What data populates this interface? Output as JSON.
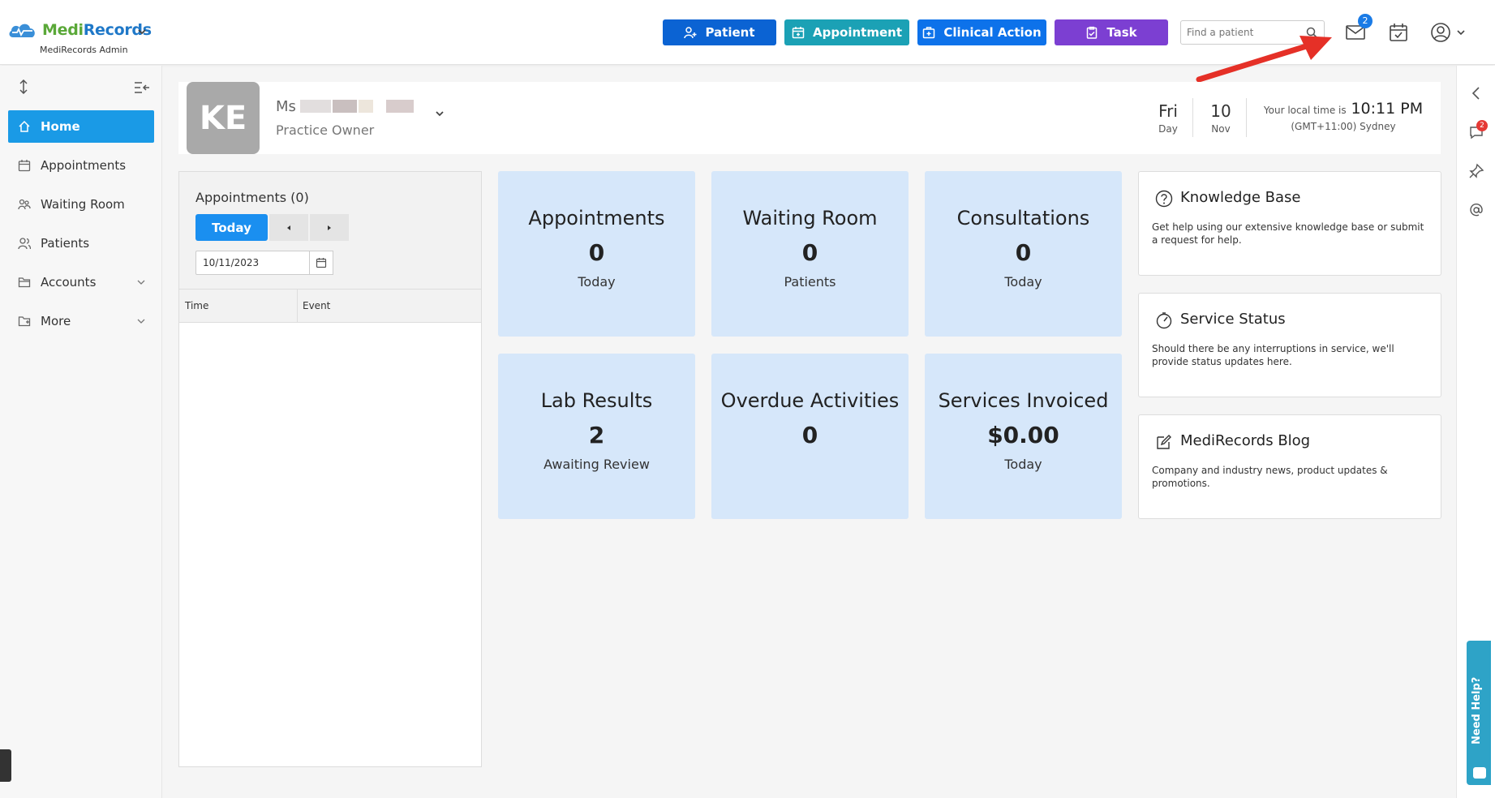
{
  "header": {
    "logo_medi": "Medi",
    "logo_records": "Records",
    "logo_sub": "MediRecords Admin",
    "buttons": {
      "patient": "Patient",
      "appointment": "Appointment",
      "clinical": "Clinical Action",
      "task": "Task"
    },
    "search_placeholder": "Find a patient",
    "mail_badge": "2"
  },
  "sidebar": {
    "items": [
      {
        "label": "Home",
        "icon": "home-icon",
        "active": true
      },
      {
        "label": "Appointments",
        "icon": "calendar-icon"
      },
      {
        "label": "Waiting Room",
        "icon": "waiting-room-icon"
      },
      {
        "label": "Patients",
        "icon": "users-icon"
      },
      {
        "label": "Accounts",
        "icon": "folder-icon",
        "expandable": true
      },
      {
        "label": "More",
        "icon": "folder-more-icon",
        "expandable": true
      }
    ]
  },
  "profile": {
    "initials": "KE",
    "salutation": "Ms",
    "role": "Practice Owner",
    "day": "Fri",
    "day_label": "Day",
    "date": "10",
    "month": "Nov",
    "local_time_label": "Your local time is",
    "local_time": "10:11 PM",
    "timezone": "(GMT+11:00) Sydney"
  },
  "appointments_panel": {
    "title": "Appointments (0)",
    "today_button": "Today",
    "date_value": "10/11/2023",
    "columns": [
      "Time",
      "Event"
    ]
  },
  "cards": [
    {
      "title": "Appointments",
      "value": "0",
      "sub": "Today"
    },
    {
      "title": "Waiting Room",
      "value": "0",
      "sub": "Patients"
    },
    {
      "title": "Consultations",
      "value": "0",
      "sub": "Today"
    },
    {
      "title": "Lab Results",
      "value": "2",
      "sub": "Awaiting Review"
    },
    {
      "title": "Overdue Activities",
      "value": "0",
      "sub": ""
    },
    {
      "title": "Services Invoiced",
      "value": "$0.00",
      "sub": "Today"
    }
  ],
  "info_boxes": [
    {
      "title": "Knowledge Base",
      "desc": "Get help using our extensive knowledge base or submit a request for help.",
      "icon": "question-icon"
    },
    {
      "title": "Service Status",
      "desc": "Should there be any interruptions in service, we'll provide status updates here.",
      "icon": "gauge-icon"
    },
    {
      "title": "MediRecords Blog",
      "desc": "Company and industry news, product updates & promotions.",
      "icon": "edit-icon"
    }
  ],
  "right_rail": {
    "chat_badge": "2",
    "need_help": "Need Help?"
  },
  "colors": {
    "patient_btn": "#0b63d3",
    "appointment_btn": "#1ba1b5",
    "clinical_btn": "#0d72ea",
    "task_btn": "#7c3fd2",
    "nav_active": "#1a9ae6",
    "card_bg": "#d6e7fa"
  }
}
